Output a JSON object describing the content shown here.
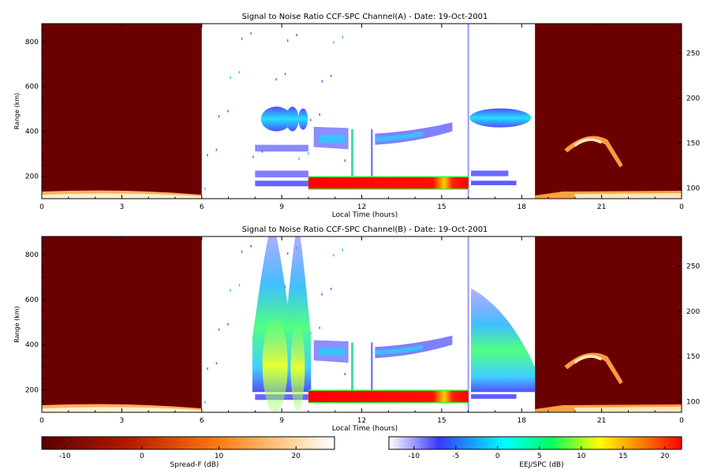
{
  "chart_data": [
    {
      "type": "heatmap",
      "title": "Signal to Noise Ratio CCF-SPC Channel(A) - Date: 19-Oct-2001",
      "xlabel": "Local Time (hours)",
      "ylabel": "Range (km)",
      "xlim": [
        0,
        24
      ],
      "ylim": [
        100,
        880
      ],
      "y2lim": [
        88,
        283
      ],
      "x_ticks": [
        "0",
        "3",
        "6",
        "9",
        "12",
        "15",
        "18",
        "21",
        "0"
      ],
      "y_ticks": [
        200,
        400,
        600,
        800
      ],
      "y2_ticks": [
        100,
        150,
        200,
        250
      ],
      "regions": [
        {
          "name": "night-start",
          "x": [
            0,
            6
          ],
          "colorbar": "Spread-F"
        },
        {
          "name": "day",
          "x": [
            6,
            18.5
          ],
          "colorbar": "EEJ/SPC"
        },
        {
          "name": "night-end",
          "x": [
            18.5,
            24
          ],
          "colorbar": "Spread-F"
        }
      ]
    },
    {
      "type": "heatmap",
      "title": "Signal to Noise Ratio CCF-SPC Channel(B) - Date: 19-Oct-2001",
      "xlabel": "Local Time (hours)",
      "ylabel": "Range (km)",
      "xlim": [
        0,
        24
      ],
      "ylim": [
        100,
        880
      ],
      "y2lim": [
        88,
        283
      ],
      "x_ticks": [
        "0",
        "3",
        "6",
        "9",
        "12",
        "15",
        "18",
        "21",
        "0"
      ],
      "y_ticks": [
        200,
        400,
        600,
        800
      ],
      "y2_ticks": [
        100,
        150,
        200,
        250
      ],
      "regions": [
        {
          "name": "night-start",
          "x": [
            0,
            6
          ],
          "colorbar": "Spread-F"
        },
        {
          "name": "day",
          "x": [
            6,
            18.5
          ],
          "colorbar": "EEJ/SPC"
        },
        {
          "name": "night-end",
          "x": [
            18.5,
            24
          ],
          "colorbar": "Spread-F"
        }
      ]
    }
  ],
  "colorbars": [
    {
      "label": "Spread-F (dB)",
      "range": [
        -13,
        25
      ],
      "ticks": [
        -10,
        0,
        10,
        20
      ],
      "colors": [
        "#5a0000",
        "#b51a00",
        "#ff7a10",
        "#ffd39a",
        "#ffffff"
      ]
    },
    {
      "label": "EEJ/SPC (dB)",
      "range": [
        -13,
        22
      ],
      "ticks": [
        -10,
        -5,
        0,
        5,
        10,
        15,
        20
      ],
      "colors": [
        "#ffffff",
        "#3838ff",
        "#00ffff",
        "#00ff60",
        "#ffff00",
        "#ff8000",
        "#ff0000"
      ]
    }
  ]
}
